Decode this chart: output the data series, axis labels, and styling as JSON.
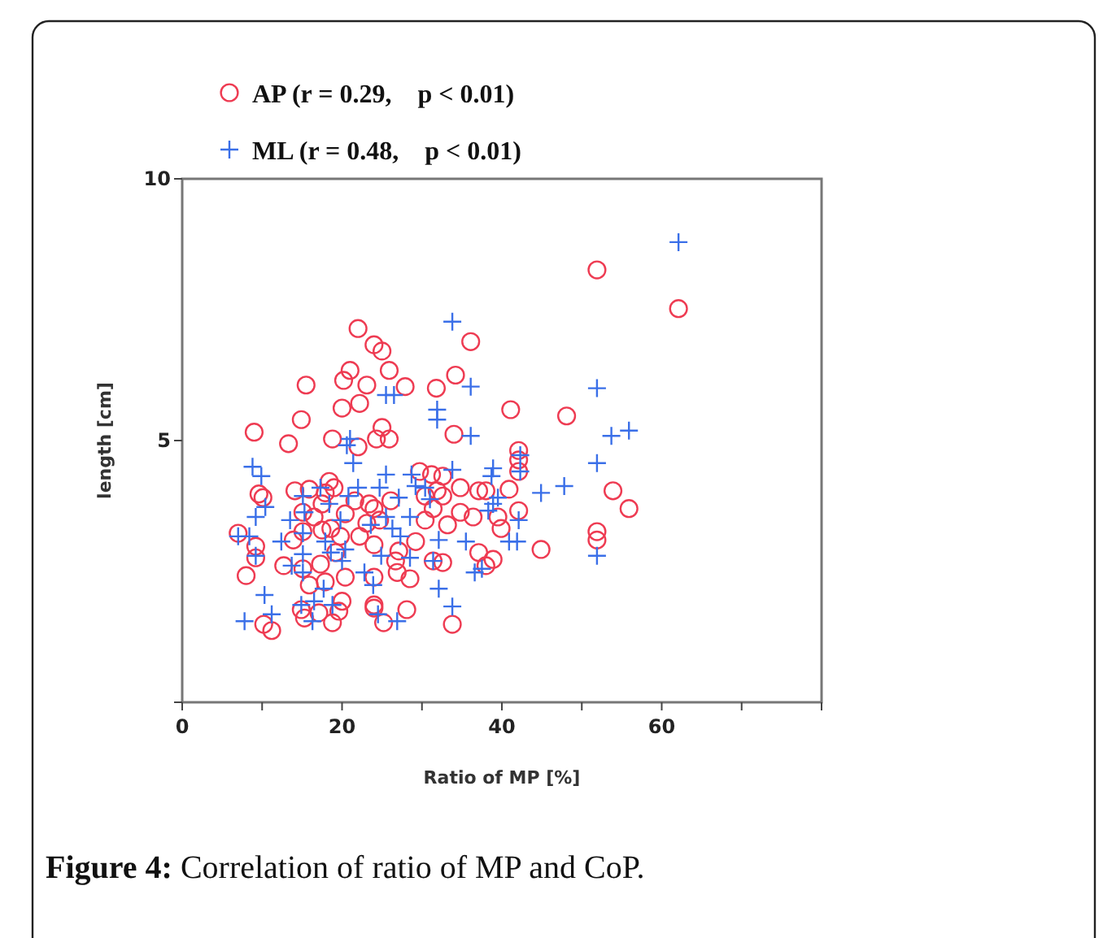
{
  "chart_data": {
    "type": "scatter",
    "xlabel": "Ratio of MP [%]",
    "ylabel": "length [cm]",
    "xlim": [
      0,
      80
    ],
    "ylim": [
      0,
      10
    ],
    "xticks": [
      0,
      {
        "value": 10,
        "label": null
      },
      20,
      {
        "value": 30,
        "label": null
      },
      40,
      {
        "value": 50,
        "label": null
      },
      60,
      {
        "value": 70,
        "label": null
      },
      {
        "value": 80,
        "label": null
      }
    ],
    "yticks": [
      {
        "value": 0,
        "label": null
      },
      5,
      10
    ],
    "grid": false,
    "legend": "top left",
    "annotations": [
      "Figure 4: Correlation of ratio of MP and CoP."
    ],
    "series": [
      {
        "name": "AP (r = 0.29,    p < 0.01)",
        "color": "#ee3b52",
        "marker": "circle",
        "x": [
          51.9,
          62.1,
          22.0,
          24.0,
          25.0,
          36.1,
          15.5,
          20.2,
          21.0,
          23.1,
          25.9,
          27.9,
          31.8,
          34.2,
          41.1,
          20.0,
          22.2,
          25.0,
          9.0,
          14.9,
          13.3,
          18.8,
          22.0,
          24.3,
          25.9,
          34.0,
          48.1,
          53.9,
          55.9,
          51.9,
          51.9,
          44.9,
          42.1,
          42.1,
          42.1,
          42.1,
          40.9,
          39.5,
          39.9,
          37.1,
          38.0,
          37.1,
          38.0,
          38.9,
          36.4,
          34.8,
          33.8,
          34.8,
          29.7,
          31.2,
          32.6,
          31.9,
          30.4,
          32.6,
          31.4,
          33.2,
          30.4,
          31.4,
          32.6,
          29.2,
          28.1,
          28.5,
          26.9,
          26.7,
          26.1,
          27.1,
          24.0,
          24.0,
          24.0,
          24.0,
          24.7,
          23.4,
          24.0,
          21.6,
          20.4,
          22.2,
          23.1,
          20.4,
          18.4,
          19.0,
          17.9,
          17.5,
          15.9,
          14.1,
          16.5,
          17.5,
          18.6,
          19.2,
          19.8,
          17.3,
          17.9,
          15.1,
          15.1,
          15.9,
          14.9,
          15.3,
          17.1,
          18.8,
          13.9,
          12.7,
          15.1,
          9.6,
          10.1,
          7.0,
          9.2,
          9.2,
          8.0,
          10.2,
          11.2,
          19.6,
          25.2,
          20.0
        ],
        "values": [
          8.26,
          7.52,
          7.14,
          6.83,
          6.71,
          6.89,
          6.06,
          6.15,
          6.34,
          6.06,
          6.34,
          6.03,
          6.0,
          6.25,
          5.59,
          5.62,
          5.71,
          5.25,
          5.16,
          5.4,
          4.94,
          5.03,
          4.88,
          5.03,
          5.03,
          5.12,
          5.47,
          4.04,
          3.7,
          3.26,
          3.1,
          2.92,
          4.81,
          4.63,
          4.41,
          3.66,
          4.07,
          3.54,
          3.32,
          4.04,
          4.04,
          2.86,
          2.61,
          2.73,
          3.54,
          3.63,
          1.49,
          4.1,
          4.41,
          4.35,
          4.32,
          4.04,
          3.94,
          3.94,
          3.7,
          3.39,
          3.48,
          2.7,
          2.67,
          3.07,
          1.77,
          2.36,
          2.48,
          2.7,
          3.85,
          2.89,
          3.01,
          2.39,
          1.86,
          1.8,
          3.48,
          3.79,
          3.7,
          3.85,
          3.6,
          3.17,
          3.42,
          2.39,
          4.22,
          4.1,
          4.0,
          3.79,
          4.07,
          4.04,
          3.54,
          3.29,
          3.32,
          2.86,
          3.17,
          2.64,
          2.3,
          3.26,
          2.55,
          2.24,
          1.77,
          1.61,
          1.71,
          1.52,
          3.1,
          2.61,
          3.63,
          3.98,
          3.91,
          3.23,
          2.98,
          2.76,
          2.42,
          1.49,
          1.37,
          1.74,
          1.52,
          1.93
        ]
      },
      {
        "name": "ML (r = 0.48,    p < 0.01)",
        "color": "#3a6fe8",
        "marker": "cross",
        "x": [
          62.1,
          33.8,
          36.1,
          51.9,
          25.5,
          26.5,
          31.9,
          31.9,
          36.1,
          53.7,
          55.9,
          51.9,
          47.8,
          44.9,
          51.9,
          42.3,
          42.3,
          42.1,
          40.9,
          41.9,
          39.5,
          38.9,
          38.9,
          38.7,
          37.5,
          36.6,
          38.3,
          35.5,
          32.1,
          31.4,
          31.0,
          30.4,
          33.8,
          33.8,
          32.1,
          28.7,
          29.2,
          28.5,
          27.3,
          28.5,
          27.1,
          25.5,
          24.7,
          25.5,
          26.3,
          24.9,
          23.6,
          23.9,
          24.5,
          26.9,
          22.8,
          22.0,
          21.4,
          21.0,
          20.6,
          20.8,
          20.4,
          20.0,
          19.8,
          18.4,
          17.9,
          18.6,
          17.3,
          17.7,
          18.8,
          16.5,
          16.3,
          15.1,
          15.3,
          15.1,
          15.1,
          15.1,
          14.9,
          13.7,
          13.5,
          12.4,
          10.4,
          9.2,
          10.3,
          11.2,
          7.8,
          8.8,
          9.9,
          7.0,
          8.4,
          9.2
        ],
        "values": [
          8.79,
          7.27,
          6.03,
          6.0,
          5.87,
          5.87,
          5.59,
          5.4,
          5.09,
          5.09,
          5.19,
          4.57,
          4.13,
          4.0,
          2.8,
          4.72,
          4.41,
          3.48,
          3.07,
          3.07,
          3.91,
          3.79,
          4.47,
          4.32,
          2.55,
          2.48,
          3.66,
          3.07,
          3.1,
          2.7,
          3.88,
          4.1,
          1.83,
          4.44,
          2.17,
          4.35,
          4.13,
          3.54,
          3.17,
          2.76,
          3.91,
          4.35,
          4.1,
          3.54,
          3.32,
          2.8,
          3.39,
          2.24,
          1.68,
          1.55,
          2.48,
          4.1,
          4.57,
          5.03,
          4.91,
          3.94,
          2.92,
          2.7,
          3.48,
          3.79,
          3.07,
          2.86,
          4.1,
          2.17,
          1.86,
          1.93,
          1.55,
          3.94,
          3.63,
          3.23,
          2.83,
          2.48,
          1.86,
          2.61,
          3.48,
          3.07,
          3.73,
          2.8,
          2.05,
          1.68,
          1.55,
          4.5,
          4.32,
          3.17,
          3.17,
          3.54
        ]
      }
    ]
  }
}
